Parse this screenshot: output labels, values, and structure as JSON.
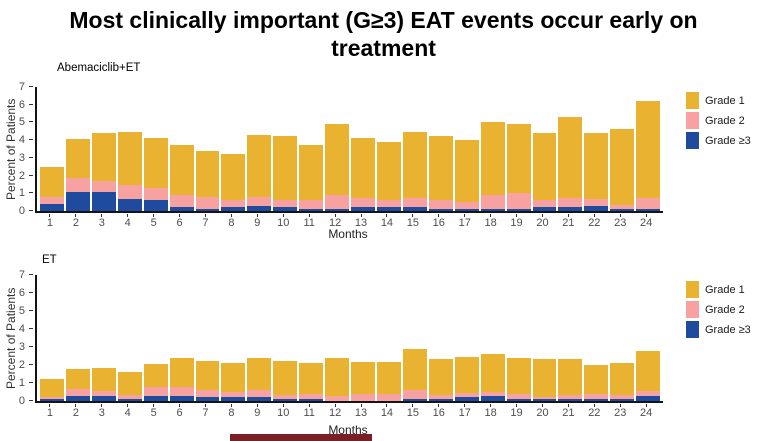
{
  "title": "Most clinically important (G≥3) EAT events occur early on treatment",
  "decor": {
    "footer_bar_color": "#7B1F26"
  },
  "colors": {
    "grade1": "#EAB231",
    "grade2": "#F7A2A1",
    "grade3plus": "#1E4B9E",
    "axis": "#141414",
    "tick_text": "#4d4d4d"
  },
  "chart_data": [
    {
      "type": "bar",
      "stacked": true,
      "panel_label": "Abemaciclib+ET",
      "xlabel": "Months",
      "ylabel": "Percent of Patients",
      "ylim": [
        0,
        7
      ],
      "yticks": [
        0,
        1,
        2,
        3,
        4,
        5,
        6,
        7
      ],
      "grid": false,
      "legend_position": "right",
      "categories": [
        "1",
        "2",
        "3",
        "4",
        "5",
        "6",
        "7",
        "8",
        "9",
        "10",
        "11",
        "12",
        "13",
        "14",
        "15",
        "16",
        "17",
        "18",
        "19",
        "20",
        "21",
        "22",
        "23",
        "24"
      ],
      "series": [
        {
          "name": "Grade ≥3",
          "color": "#1E4B9E",
          "values": [
            0.4,
            1.1,
            1.1,
            0.7,
            0.6,
            0.2,
            0.1,
            0.2,
            0.3,
            0.2,
            0.1,
            0.1,
            0.2,
            0.2,
            0.2,
            0.1,
            0.1,
            0.1,
            0.1,
            0.2,
            0.2,
            0.3,
            0.1,
            0.1
          ]
        },
        {
          "name": "Grade 2",
          "color": "#F7A2A1",
          "values": [
            0.4,
            0.8,
            0.6,
            0.8,
            0.7,
            0.7,
            0.7,
            0.4,
            0.5,
            0.4,
            0.5,
            0.8,
            0.5,
            0.4,
            0.5,
            0.5,
            0.4,
            0.8,
            0.9,
            0.4,
            0.5,
            0.4,
            0.2,
            0.6
          ]
        },
        {
          "name": "Grade 1",
          "color": "#EAB231",
          "values": [
            1.7,
            2.2,
            2.7,
            3.0,
            2.8,
            2.8,
            2.6,
            2.6,
            3.5,
            3.6,
            3.1,
            4.0,
            3.4,
            3.3,
            3.7,
            3.6,
            3.5,
            4.1,
            3.9,
            3.8,
            4.6,
            3.7,
            4.3,
            5.5
          ]
        }
      ],
      "totals": [
        2.5,
        4.1,
        4.4,
        4.5,
        4.1,
        3.7,
        3.4,
        3.2,
        4.3,
        4.2,
        3.7,
        4.9,
        4.1,
        3.9,
        4.4,
        4.2,
        4.0,
        5.0,
        4.9,
        4.4,
        5.3,
        4.4,
        4.6,
        6.2
      ],
      "legend": [
        {
          "label": "Grade 1",
          "color": "#EAB231"
        },
        {
          "label": "Grade 2",
          "color": "#F7A2A1"
        },
        {
          "label": "Grade ≥3",
          "color": "#1E4B9E"
        }
      ]
    },
    {
      "type": "bar",
      "stacked": true,
      "panel_label": "ET",
      "xlabel": "Months",
      "ylabel": "Percent of Patients",
      "ylim": [
        0,
        7
      ],
      "yticks": [
        0,
        1,
        2,
        3,
        4,
        5,
        6,
        7
      ],
      "grid": false,
      "legend_position": "right",
      "categories": [
        "1",
        "2",
        "3",
        "4",
        "5",
        "6",
        "7",
        "8",
        "9",
        "10",
        "11",
        "12",
        "13",
        "14",
        "15",
        "16",
        "17",
        "18",
        "19",
        "20",
        "21",
        "22",
        "23",
        "24"
      ],
      "series": [
        {
          "name": "Grade ≥3",
          "color": "#1E4B9E",
          "values": [
            0.1,
            0.3,
            0.3,
            0.1,
            0.3,
            0.3,
            0.2,
            0.2,
            0.2,
            0.1,
            0.1,
            0.0,
            0.0,
            0.0,
            0.1,
            0.1,
            0.2,
            0.3,
            0.1,
            0.1,
            0.1,
            0.1,
            0.1,
            0.3
          ]
        },
        {
          "name": "Grade 2",
          "color": "#F7A2A1",
          "values": [
            0.1,
            0.4,
            0.3,
            0.2,
            0.5,
            0.5,
            0.4,
            0.3,
            0.4,
            0.2,
            0.3,
            0.3,
            0.4,
            0.4,
            0.5,
            0.2,
            0.2,
            0.2,
            0.3,
            0.1,
            0.2,
            0.3,
            0.2,
            0.3
          ]
        },
        {
          "name": "Grade 1",
          "color": "#EAB231",
          "values": [
            1.0,
            1.1,
            1.3,
            1.3,
            1.3,
            1.6,
            1.6,
            1.6,
            1.8,
            1.9,
            1.7,
            2.1,
            1.8,
            1.8,
            2.3,
            2.0,
            2.0,
            2.1,
            2.0,
            2.1,
            2.0,
            1.6,
            1.8,
            2.2
          ]
        }
      ],
      "totals": [
        1.2,
        1.8,
        1.9,
        1.6,
        2.1,
        2.4,
        2.2,
        2.1,
        2.4,
        2.2,
        2.1,
        2.4,
        2.2,
        2.2,
        2.9,
        2.3,
        2.4,
        2.6,
        2.4,
        2.3,
        2.3,
        2.0,
        2.1,
        2.8
      ],
      "legend": [
        {
          "label": "Grade 1",
          "color": "#EAB231"
        },
        {
          "label": "Grade 2",
          "color": "#F7A2A1"
        },
        {
          "label": "Grade ≥3",
          "color": "#1E4B9E"
        }
      ]
    }
  ]
}
